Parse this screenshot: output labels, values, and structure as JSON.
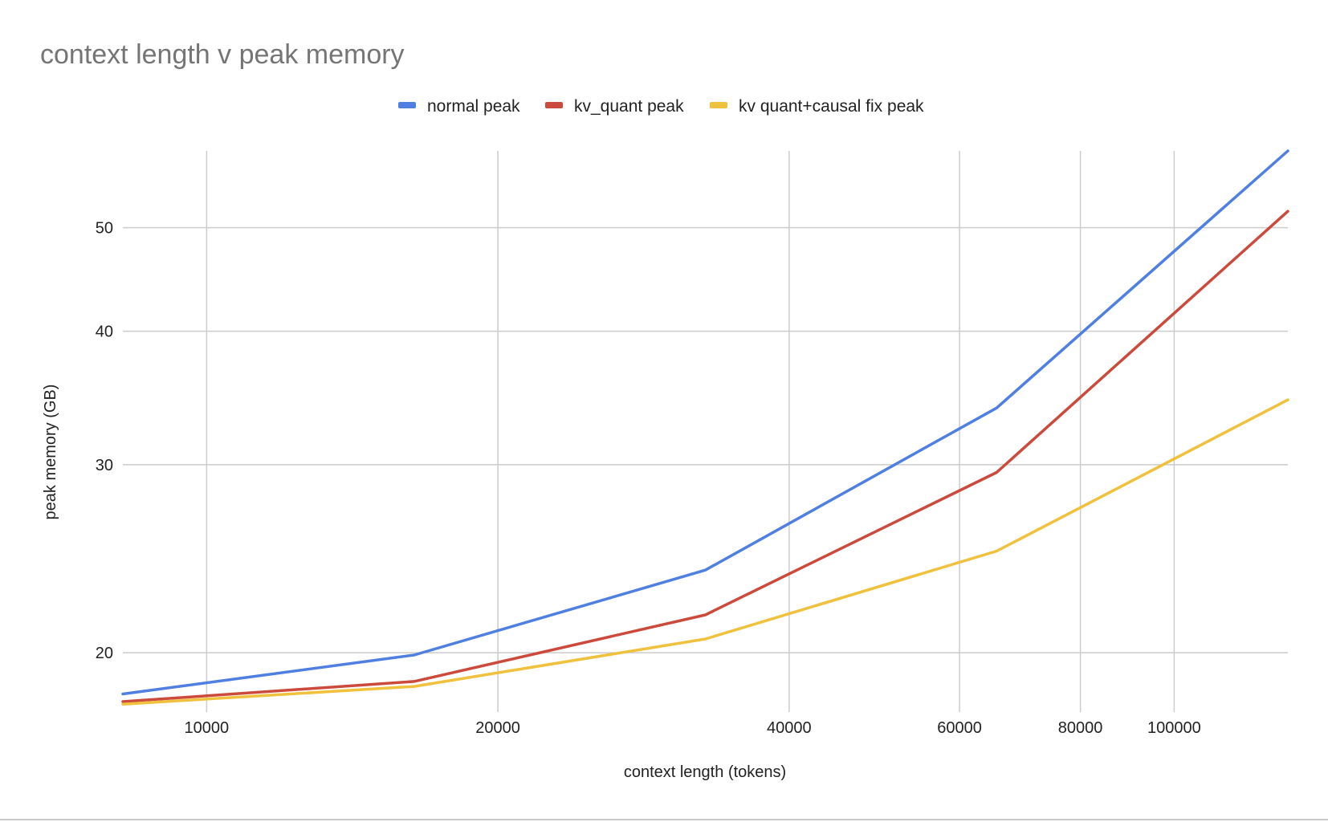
{
  "chart_data": {
    "type": "line",
    "title": "context length v peak memory",
    "xlabel": "context length (tokens)",
    "ylabel": "peak memory (GB)",
    "x_scale": "log",
    "y_scale": "log",
    "xlim": [
      8192,
      131072
    ],
    "ylim": [
      17.6,
      59
    ],
    "x_ticks": [
      10000,
      20000,
      40000,
      60000,
      80000,
      100000
    ],
    "x_tick_labels": [
      "10000",
      "20000",
      "40000",
      "60000",
      "80000",
      "100000"
    ],
    "y_ticks": [
      20,
      30,
      40,
      50
    ],
    "y_tick_labels": [
      "20",
      "30",
      "40",
      "50"
    ],
    "grid": true,
    "legend_position": "top",
    "x": [
      8192,
      16384,
      32768,
      65536,
      131072
    ],
    "series": [
      {
        "name": "normal peak",
        "color": "#4f7fe0",
        "values": [
          18.3,
          19.9,
          23.9,
          33.9,
          59.0
        ]
      },
      {
        "name": "kv_quant peak",
        "color": "#cc4a3c",
        "values": [
          18.0,
          18.8,
          21.7,
          29.5,
          51.8
        ]
      },
      {
        "name": "kv quant+causal fix peak",
        "color": "#f0c13d",
        "values": [
          17.9,
          18.6,
          20.6,
          24.9,
          34.5
        ]
      }
    ]
  }
}
